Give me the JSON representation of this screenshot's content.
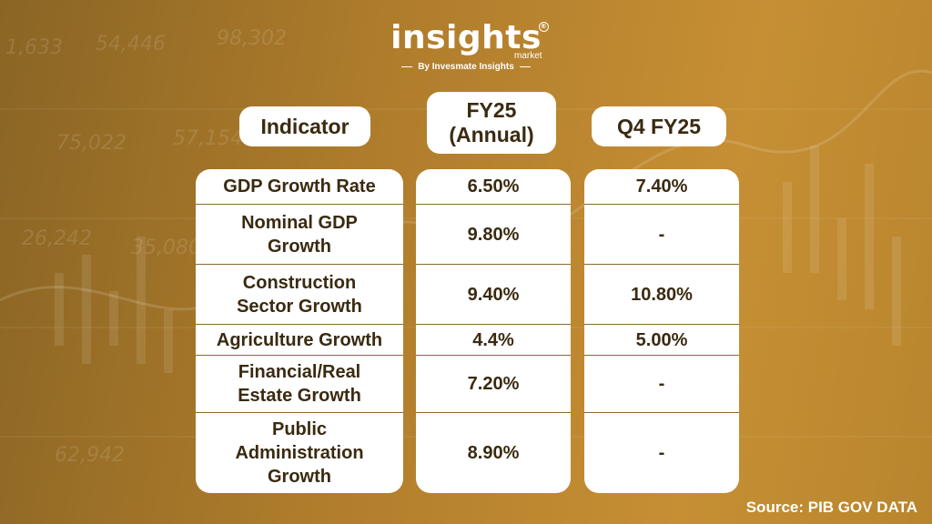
{
  "background": {
    "numbers": [
      "1,633",
      "54,446",
      "98,302",
      "75,022",
      "57,154",
      "26,242",
      "35,080",
      "62,942"
    ]
  },
  "logo": {
    "word": "insights",
    "reg_mark": "®",
    "sub": "market",
    "byline": "By Invesmate Insights"
  },
  "table": {
    "headers": {
      "indicator": "Indicator",
      "fy25_line1": "FY25",
      "fy25_line2": "(Annual)",
      "q4": "Q4 FY25"
    },
    "rows": [
      {
        "indicator": "GDP Growth Rate",
        "fy25": "6.50%",
        "q4": "7.40%"
      },
      {
        "indicator": "Nominal GDP Growth",
        "fy25": "9.80%",
        "q4": "-"
      },
      {
        "indicator": "Construction Sector Growth",
        "fy25": "9.40%",
        "q4": "10.80%"
      },
      {
        "indicator": "Agriculture Growth",
        "fy25": "4.4%",
        "q4": "5.00%"
      },
      {
        "indicator": "Financial/Real Estate Growth",
        "fy25": "7.20%",
        "q4": "-"
      },
      {
        "indicator": "Public Administration Growth",
        "fy25": "8.90%",
        "q4": "-"
      }
    ]
  },
  "source": "Source: PIB GOV DATA",
  "colors": {
    "background": "#b07d2c",
    "pill": "#ffffff",
    "text_dark": "#3a2a10",
    "divider": "#8a6a30"
  }
}
